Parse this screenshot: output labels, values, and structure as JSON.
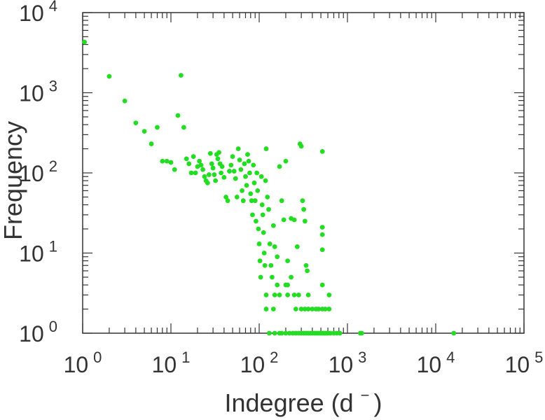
{
  "chart_data": {
    "type": "scatter",
    "title": "",
    "xlabel": "Indegree (d⁻)",
    "xlabel_main": "Indegree (d",
    "xlabel_sup": "−",
    "xlabel_close": ")",
    "ylabel": "Frequency",
    "xscale": "log",
    "yscale": "log",
    "xlim": [
      1,
      100000
    ],
    "ylim": [
      1,
      10000
    ],
    "grid": false,
    "legend": "none",
    "marker_color": "#22dd22",
    "x_ticks": [
      {
        "base": "10",
        "exp": "0"
      },
      {
        "base": "10",
        "exp": "1"
      },
      {
        "base": "10",
        "exp": "2"
      },
      {
        "base": "10",
        "exp": "3"
      },
      {
        "base": "10",
        "exp": "4"
      },
      {
        "base": "10",
        "exp": "5"
      }
    ],
    "y_ticks": [
      {
        "base": "10",
        "exp": "0"
      },
      {
        "base": "10",
        "exp": "1"
      },
      {
        "base": "10",
        "exp": "2"
      },
      {
        "base": "10",
        "exp": "3"
      },
      {
        "base": "10",
        "exp": "4"
      }
    ],
    "points": [
      [
        1.05,
        4300
      ],
      [
        2,
        1600
      ],
      [
        3,
        790
      ],
      [
        4,
        420
      ],
      [
        5,
        330
      ],
      [
        6,
        230
      ],
      [
        7,
        370
      ],
      [
        8,
        140
      ],
      [
        9,
        140
      ],
      [
        10,
        135
      ],
      [
        11,
        110
      ],
      [
        12,
        520
      ],
      [
        13,
        1650
      ],
      [
        14,
        370
      ],
      [
        15,
        150
      ],
      [
        16,
        130
      ],
      [
        17,
        100
      ],
      [
        18,
        160
      ],
      [
        19,
        100
      ],
      [
        20,
        120
      ],
      [
        21,
        140
      ],
      [
        22,
        125
      ],
      [
        23,
        110
      ],
      [
        24,
        90
      ],
      [
        25,
        80
      ],
      [
        26,
        75
      ],
      [
        27,
        95
      ],
      [
        28,
        175
      ],
      [
        29,
        130
      ],
      [
        30,
        115
      ],
      [
        31,
        95
      ],
      [
        32,
        80
      ],
      [
        33,
        170
      ],
      [
        34,
        150
      ],
      [
        35,
        180
      ],
      [
        36,
        130
      ],
      [
        37,
        100
      ],
      [
        38,
        120
      ],
      [
        40,
        88
      ],
      [
        42,
        50
      ],
      [
        44,
        45
      ],
      [
        46,
        105
      ],
      [
        48,
        125
      ],
      [
        50,
        160
      ],
      [
        52,
        105
      ],
      [
        54,
        85
      ],
      [
        56,
        50
      ],
      [
        58,
        200
      ],
      [
        60,
        145
      ],
      [
        62,
        110
      ],
      [
        64,
        60
      ],
      [
        66,
        45
      ],
      [
        68,
        130
      ],
      [
        70,
        90
      ],
      [
        72,
        70
      ],
      [
        74,
        170
      ],
      [
        76,
        140
      ],
      [
        78,
        100
      ],
      [
        80,
        55
      ],
      [
        82,
        45
      ],
      [
        84,
        30
      ],
      [
        86,
        125
      ],
      [
        88,
        75
      ],
      [
        90,
        45
      ],
      [
        92,
        25
      ],
      [
        94,
        100
      ],
      [
        96,
        60
      ],
      [
        98,
        20
      ],
      [
        100,
        13
      ],
      [
        102,
        8
      ],
      [
        104,
        5
      ],
      [
        106,
        90
      ],
      [
        108,
        40
      ],
      [
        110,
        30
      ],
      [
        112,
        18
      ],
      [
        114,
        10
      ],
      [
        116,
        7
      ],
      [
        118,
        80
      ],
      [
        120,
        200
      ],
      [
        124,
        50
      ],
      [
        128,
        35
      ],
      [
        132,
        13
      ],
      [
        136,
        7
      ],
      [
        140,
        5
      ],
      [
        145,
        22
      ],
      [
        150,
        12
      ],
      [
        160,
        9
      ],
      [
        170,
        120
      ],
      [
        180,
        45
      ],
      [
        190,
        26
      ],
      [
        200,
        140
      ],
      [
        210,
        8
      ],
      [
        230,
        27
      ],
      [
        250,
        26
      ],
      [
        270,
        12
      ],
      [
        290,
        230
      ],
      [
        300,
        215
      ],
      [
        310,
        45
      ],
      [
        320,
        35
      ],
      [
        330,
        25
      ],
      [
        340,
        7
      ],
      [
        350,
        6
      ],
      [
        520,
        185
      ],
      [
        520,
        21
      ],
      [
        520,
        17
      ],
      [
        520,
        11
      ],
      [
        120,
        2
      ],
      [
        145,
        2
      ],
      [
        160,
        4
      ],
      [
        170,
        3
      ],
      [
        200,
        4
      ],
      [
        210,
        3
      ],
      [
        230,
        5
      ],
      [
        260,
        2
      ],
      [
        280,
        3
      ],
      [
        300,
        2
      ],
      [
        330,
        2
      ],
      [
        360,
        2
      ],
      [
        400,
        2
      ],
      [
        440,
        2
      ],
      [
        470,
        2
      ],
      [
        520,
        2
      ],
      [
        560,
        2
      ],
      [
        620,
        2
      ],
      [
        120,
        3
      ],
      [
        150,
        3
      ],
      [
        210,
        4
      ],
      [
        250,
        3
      ],
      [
        360,
        3
      ],
      [
        520,
        4
      ],
      [
        620,
        3
      ],
      [
        130,
        1
      ],
      [
        150,
        1
      ],
      [
        170,
        1
      ],
      [
        180,
        1
      ],
      [
        200,
        1
      ],
      [
        220,
        1
      ],
      [
        240,
        1
      ],
      [
        260,
        1
      ],
      [
        280,
        1
      ],
      [
        300,
        1
      ],
      [
        320,
        1
      ],
      [
        340,
        1
      ],
      [
        360,
        1
      ],
      [
        380,
        1
      ],
      [
        400,
        1
      ],
      [
        420,
        1
      ],
      [
        440,
        1
      ],
      [
        460,
        1
      ],
      [
        480,
        1
      ],
      [
        500,
        1
      ],
      [
        520,
        1
      ],
      [
        540,
        1
      ],
      [
        560,
        1
      ],
      [
        580,
        1
      ],
      [
        600,
        1
      ],
      [
        640,
        1
      ],
      [
        700,
        1
      ],
      [
        760,
        1
      ],
      [
        820,
        1
      ],
      [
        1400,
        1
      ],
      [
        1450,
        1
      ],
      [
        16000,
        1
      ]
    ]
  }
}
